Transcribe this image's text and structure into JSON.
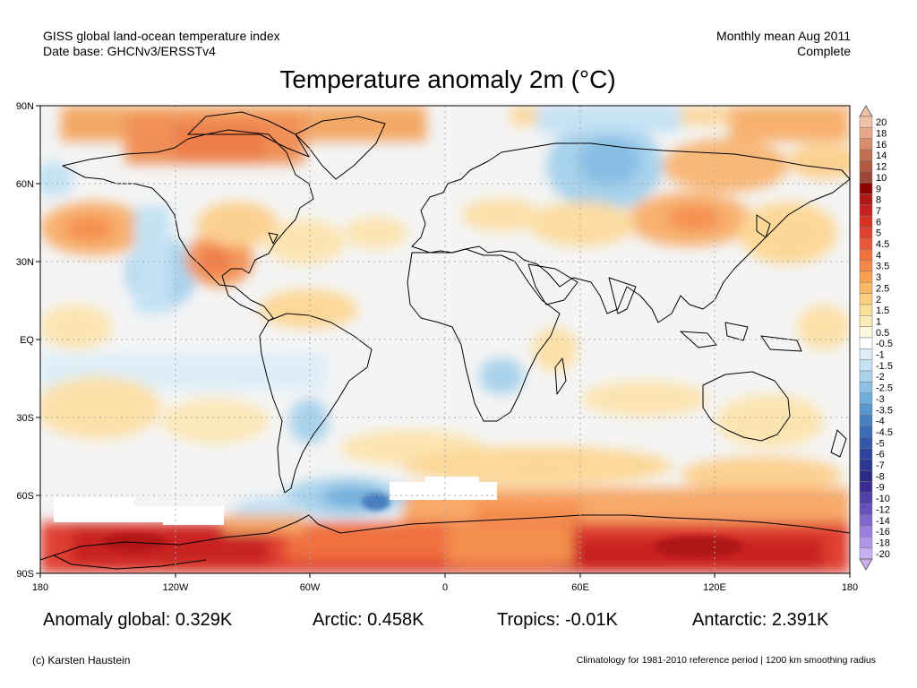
{
  "header": {
    "source_line1": "GISS global land-ocean temperature index",
    "source_line2": "Date base: GHCNv3/ERSSTv4",
    "period_line1": "Monthly mean Aug 2011",
    "period_line2": "Complete"
  },
  "title": "Temperature anomaly 2m (°C)",
  "map": {
    "lat_labels": [
      "90N",
      "60N",
      "30N",
      "EQ",
      "30S",
      "60S",
      "90S"
    ],
    "lon_labels": [
      "180",
      "120W",
      "60W",
      "0",
      "60E",
      "120E",
      "180"
    ],
    "grid": true
  },
  "legend": {
    "labels": [
      "20",
      "18",
      "16",
      "14",
      "12",
      "10",
      "9",
      "8",
      "7",
      "6",
      "5",
      "4.5",
      "4",
      "3.5",
      "3",
      "2.5",
      "2",
      "1.5",
      "1",
      "0.5",
      "-0.5",
      "-1",
      "-1.5",
      "-2",
      "-2.5",
      "-3",
      "-3.5",
      "-4",
      "-4.5",
      "-5",
      "-6",
      "-7",
      "-8",
      "-9",
      "-10",
      "-12",
      "-14",
      "-16",
      "-18",
      "-20"
    ],
    "colors": [
      "#f0c0a8",
      "#e8a888",
      "#d88c6c",
      "#c07050",
      "#b05840",
      "#9c4838",
      "#8c0000",
      "#b01818",
      "#c82020",
      "#d83020",
      "#e04030",
      "#e85838",
      "#f07040",
      "#f48848",
      "#f8a050",
      "#f8b864",
      "#fcd080",
      "#fce098",
      "#fcecb8",
      "#fff8e0",
      "#ffffff",
      "#ddeef8",
      "#c4e2f4",
      "#a8d2ec",
      "#8cc0e4",
      "#70aedc",
      "#5898cc",
      "#4880c0",
      "#3c6cb4",
      "#3458a8",
      "#2c449c",
      "#283890",
      "#282c84",
      "#3c2c94",
      "#5040a8",
      "#6850bc",
      "#8068cc",
      "#9880dc",
      "#b098e8",
      "#c8b0f0"
    ]
  },
  "stats": {
    "global": "Anomaly global: 0.329K",
    "arctic": "Arctic: 0.458K",
    "tropics": "Tropics: -0.01K",
    "antarctic": "Antarctic: 2.391K"
  },
  "footer": {
    "credit": "(c) Karsten Haustein",
    "note": "Climatology for 1981-2010 reference period | 1200 km smoothing radius"
  }
}
